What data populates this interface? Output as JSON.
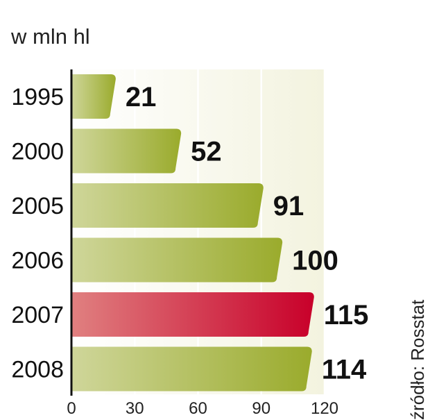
{
  "chart_data": {
    "type": "bar",
    "orientation": "horizontal",
    "unit_label": "w mln hl",
    "source": "źródło: Rosstat",
    "categories": [
      "1995",
      "2000",
      "2005",
      "2006",
      "2007",
      "2008"
    ],
    "values": [
      21,
      52,
      91,
      100,
      115,
      114
    ],
    "highlight": "2007",
    "xlim": [
      0,
      120
    ],
    "xticks": [
      0,
      30,
      60,
      90,
      120
    ],
    "grid": true,
    "colors": {
      "bar_light": "#cfd69a",
      "bar_dark": "#9aab2c",
      "highlight_light": "#e08080",
      "highlight_dark": "#c8002a",
      "highlight_text": "#c8002a",
      "panel_light": "#f3f3df"
    }
  }
}
